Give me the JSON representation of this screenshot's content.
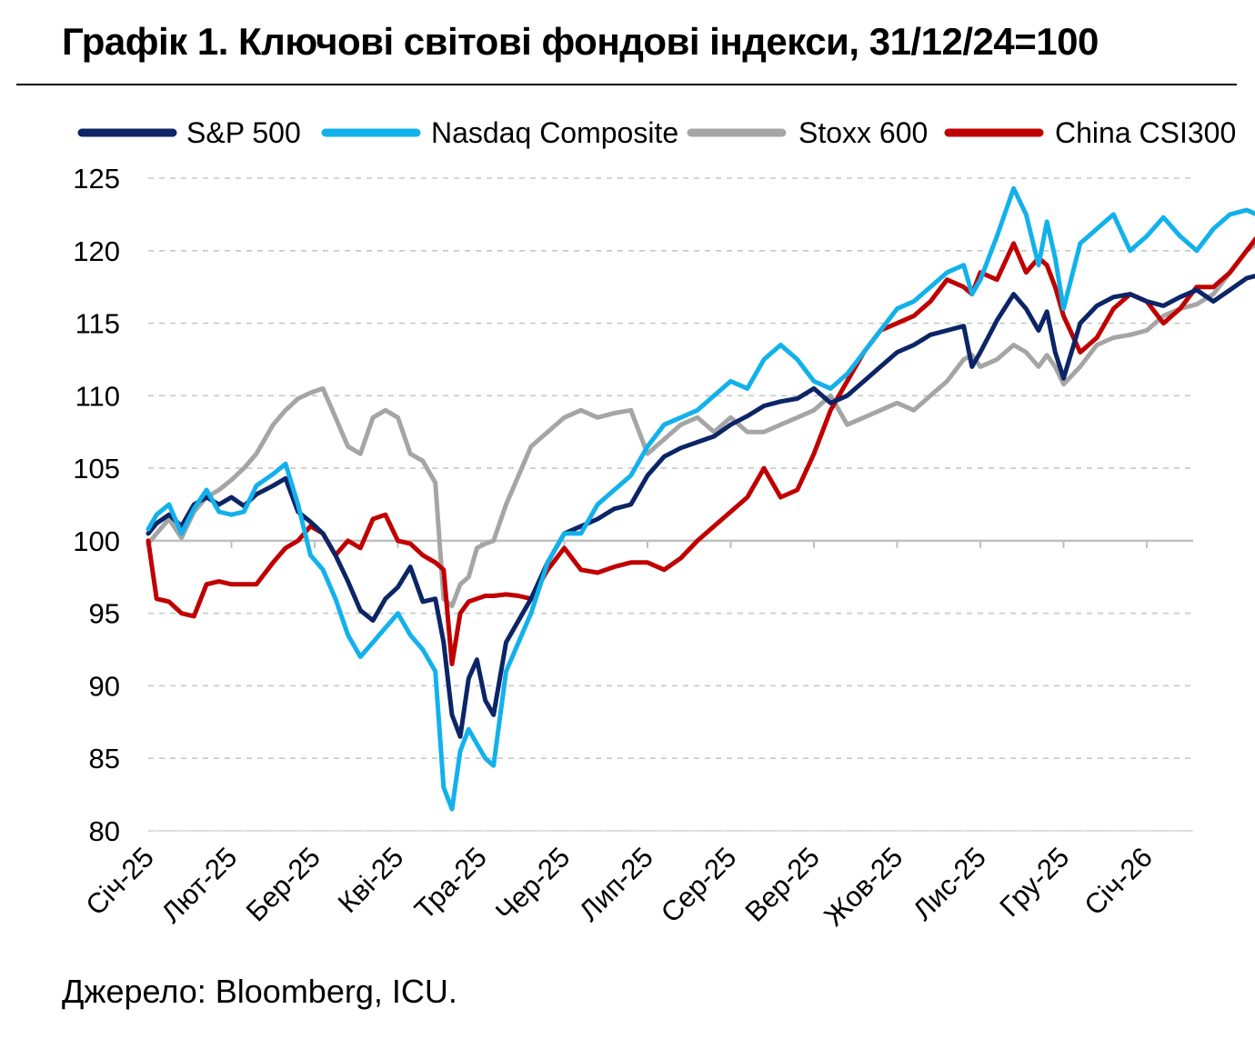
{
  "title": "Графік 1. Ключові світові фондові індекси, 31/12/24=100",
  "source": "Джерело: Bloomberg, ICU.",
  "chart_data": {
    "type": "line",
    "title": "Графік 1. Ключові світові фондові індекси, 31/12/24=100",
    "xlabel": "",
    "ylabel": "",
    "ylim": [
      80,
      125
    ],
    "yticks": [
      80,
      85,
      90,
      95,
      100,
      105,
      110,
      115,
      120,
      125
    ],
    "grid": true,
    "legend_position": "top",
    "x_ticks": [
      "Січ-25",
      "Лют-25",
      "Бер-25",
      "Кві-25",
      "Тра-25",
      "Чер-25",
      "Лип-25",
      "Сер-25",
      "Вер-25",
      "Жов-25",
      "Лис-25",
      "Гру-25",
      "Січ-26"
    ],
    "x_range": [
      0,
      13.55
    ],
    "series": [
      {
        "name": "S&P 500",
        "color": "#0b2566",
        "x": [
          0,
          0.1,
          0.25,
          0.4,
          0.55,
          0.7,
          0.85,
          1.0,
          1.15,
          1.3,
          1.5,
          1.65,
          1.8,
          1.95,
          2.1,
          2.25,
          2.4,
          2.55,
          2.7,
          2.85,
          3.0,
          3.15,
          3.3,
          3.45,
          3.55,
          3.65,
          3.75,
          3.85,
          3.95,
          4.05,
          4.15,
          4.3,
          4.45,
          4.6,
          4.8,
          5.0,
          5.2,
          5.4,
          5.6,
          5.8,
          6.0,
          6.2,
          6.4,
          6.6,
          6.8,
          7.0,
          7.2,
          7.4,
          7.6,
          7.8,
          8.0,
          8.2,
          8.4,
          8.6,
          8.8,
          9.0,
          9.2,
          9.4,
          9.6,
          9.8,
          9.9,
          10.0,
          10.2,
          10.4,
          10.55,
          10.7,
          10.8,
          10.9,
          11.0,
          11.2,
          11.4,
          11.6,
          11.8,
          12.0,
          12.2,
          12.4,
          12.6,
          12.8,
          13.0,
          13.2,
          13.4,
          13.55
        ],
        "values": [
          100.5,
          101.2,
          101.8,
          101.0,
          102.5,
          103.0,
          102.5,
          103.0,
          102.4,
          103.2,
          103.8,
          104.3,
          102.0,
          101.3,
          100.5,
          99.0,
          97.2,
          95.2,
          94.5,
          96.0,
          96.8,
          98.2,
          95.8,
          96.0,
          93.0,
          88.0,
          86.5,
          90.5,
          91.8,
          89.0,
          88.0,
          93.0,
          94.5,
          96.0,
          98.5,
          100.5,
          101.0,
          101.5,
          102.2,
          102.5,
          104.5,
          105.8,
          106.4,
          106.8,
          107.2,
          108.0,
          108.6,
          109.3,
          109.6,
          109.8,
          110.5,
          109.5,
          110.0,
          111.0,
          112.0,
          113.0,
          113.5,
          114.2,
          114.5,
          114.8,
          112.0,
          113.0,
          115.2,
          117.0,
          116.0,
          114.5,
          115.8,
          113.0,
          111.2,
          115.0,
          116.2,
          116.8,
          117.0,
          116.5,
          116.2,
          116.8,
          117.3,
          116.5,
          117.3,
          118.1,
          118.4,
          117.9
        ]
      },
      {
        "name": "Nasdaq Composite",
        "color": "#12b1ec",
        "x": [
          0,
          0.1,
          0.25,
          0.4,
          0.55,
          0.7,
          0.85,
          1.0,
          1.15,
          1.3,
          1.5,
          1.65,
          1.8,
          1.95,
          2.1,
          2.25,
          2.4,
          2.55,
          2.7,
          2.85,
          3.0,
          3.15,
          3.3,
          3.45,
          3.55,
          3.65,
          3.75,
          3.85,
          3.95,
          4.05,
          4.15,
          4.3,
          4.45,
          4.6,
          4.8,
          5.0,
          5.2,
          5.4,
          5.6,
          5.8,
          6.0,
          6.2,
          6.4,
          6.6,
          6.8,
          7.0,
          7.2,
          7.4,
          7.6,
          7.8,
          8.0,
          8.2,
          8.4,
          8.6,
          8.8,
          9.0,
          9.2,
          9.4,
          9.6,
          9.8,
          9.9,
          10.0,
          10.2,
          10.4,
          10.55,
          10.7,
          10.8,
          10.9,
          11.0,
          11.2,
          11.4,
          11.6,
          11.8,
          12.0,
          12.2,
          12.4,
          12.6,
          12.8,
          13.0,
          13.2,
          13.4,
          13.55
        ],
        "values": [
          100.8,
          101.8,
          102.5,
          100.5,
          102.2,
          103.5,
          102.0,
          101.8,
          102.0,
          103.8,
          104.6,
          105.3,
          102.5,
          99.0,
          98.0,
          96.0,
          93.5,
          92.0,
          93.0,
          94.0,
          95.0,
          93.5,
          92.5,
          91.0,
          83.0,
          81.5,
          85.5,
          87.0,
          86.0,
          85.0,
          84.5,
          91.0,
          93.0,
          95.0,
          98.5,
          100.5,
          100.5,
          102.5,
          103.5,
          104.5,
          106.5,
          108.0,
          108.5,
          109.0,
          110.0,
          111.0,
          110.5,
          112.5,
          113.5,
          112.5,
          111.0,
          110.5,
          111.5,
          113.0,
          114.5,
          116.0,
          116.5,
          117.5,
          118.5,
          119.0,
          117.0,
          118.0,
          121.0,
          124.3,
          122.5,
          119.0,
          122.0,
          119.5,
          116.0,
          120.5,
          121.5,
          122.5,
          120.0,
          121.0,
          122.3,
          121.0,
          120.0,
          121.5,
          122.5,
          122.8,
          122.3,
          121.5
        ]
      },
      {
        "name": "Stoxx 600",
        "color": "#a5a5a5",
        "x": [
          0,
          0.1,
          0.25,
          0.4,
          0.55,
          0.7,
          0.85,
          1.0,
          1.15,
          1.3,
          1.5,
          1.65,
          1.8,
          1.95,
          2.1,
          2.25,
          2.4,
          2.55,
          2.7,
          2.85,
          3.0,
          3.15,
          3.3,
          3.45,
          3.55,
          3.65,
          3.75,
          3.85,
          3.95,
          4.05,
          4.15,
          4.3,
          4.45,
          4.6,
          4.8,
          5.0,
          5.2,
          5.4,
          5.6,
          5.8,
          6.0,
          6.2,
          6.4,
          6.6,
          6.8,
          7.0,
          7.2,
          7.4,
          7.6,
          7.8,
          8.0,
          8.2,
          8.4,
          8.6,
          8.8,
          9.0,
          9.2,
          9.4,
          9.6,
          9.8,
          9.9,
          10.0,
          10.2,
          10.4,
          10.55,
          10.7,
          10.8,
          10.9,
          11.0,
          11.2,
          11.4,
          11.6,
          11.8,
          12.0,
          12.2,
          12.4,
          12.6,
          12.8,
          13.0,
          13.2,
          13.4,
          13.55
        ],
        "values": [
          99.8,
          100.5,
          101.5,
          100.2,
          102.0,
          103.0,
          103.5,
          104.2,
          105.0,
          106.0,
          108.0,
          109.0,
          109.8,
          110.2,
          110.5,
          108.5,
          106.5,
          106.0,
          108.5,
          109.0,
          108.5,
          106.0,
          105.5,
          104.0,
          96.0,
          95.5,
          97.0,
          97.5,
          99.5,
          99.8,
          100.0,
          102.5,
          104.5,
          106.5,
          107.5,
          108.5,
          109.0,
          108.5,
          108.8,
          109.0,
          106.0,
          107.0,
          108.0,
          108.5,
          107.5,
          108.5,
          107.5,
          107.5,
          108.0,
          108.5,
          109.0,
          110.0,
          108.0,
          108.5,
          109.0,
          109.5,
          109.0,
          110.0,
          111.0,
          112.5,
          112.8,
          112.0,
          112.5,
          113.5,
          113.0,
          112.0,
          112.8,
          112.0,
          110.8,
          112.0,
          113.5,
          114.0,
          114.2,
          114.5,
          115.5,
          116.0,
          116.3,
          117.0,
          118.5,
          120.0,
          120.8,
          120.8
        ]
      },
      {
        "name": "China CSI300",
        "color": "#c00000",
        "x": [
          0,
          0.1,
          0.25,
          0.4,
          0.55,
          0.7,
          0.85,
          1.0,
          1.15,
          1.3,
          1.5,
          1.65,
          1.8,
          1.95,
          2.1,
          2.25,
          2.4,
          2.55,
          2.7,
          2.85,
          3.0,
          3.15,
          3.3,
          3.45,
          3.55,
          3.65,
          3.75,
          3.85,
          3.95,
          4.05,
          4.15,
          4.3,
          4.45,
          4.6,
          4.8,
          5.0,
          5.2,
          5.4,
          5.6,
          5.8,
          6.0,
          6.2,
          6.4,
          6.6,
          6.8,
          7.0,
          7.2,
          7.4,
          7.6,
          7.8,
          8.0,
          8.2,
          8.4,
          8.6,
          8.8,
          9.0,
          9.2,
          9.4,
          9.6,
          9.8,
          9.9,
          10.0,
          10.2,
          10.4,
          10.55,
          10.7,
          10.8,
          10.9,
          11.0,
          11.2,
          11.4,
          11.6,
          11.8,
          12.0,
          12.2,
          12.4,
          12.6,
          12.8,
          13.0,
          13.2,
          13.4,
          13.55
        ],
        "values": [
          100.0,
          96.0,
          95.8,
          95.0,
          94.8,
          97.0,
          97.2,
          97.0,
          97.0,
          97.0,
          98.5,
          99.5,
          100.0,
          101.0,
          100.5,
          99.0,
          100.0,
          99.5,
          101.5,
          101.8,
          100.0,
          99.8,
          99.0,
          98.5,
          98.0,
          91.5,
          95.0,
          95.8,
          96.0,
          96.2,
          96.2,
          96.3,
          96.2,
          96.0,
          98.0,
          99.5,
          98.0,
          97.8,
          98.2,
          98.5,
          98.5,
          98.0,
          98.8,
          100.0,
          101.0,
          102.0,
          103.0,
          105.0,
          103.0,
          103.5,
          106.0,
          109.0,
          111.0,
          113.0,
          114.5,
          115.0,
          115.5,
          116.5,
          118.0,
          117.5,
          117.0,
          118.5,
          118.0,
          120.5,
          118.5,
          119.5,
          119.0,
          117.5,
          115.5,
          113.0,
          114.0,
          116.0,
          117.0,
          116.5,
          115.0,
          116.0,
          117.5,
          117.5,
          118.5,
          120.0,
          121.5,
          120.5
        ]
      }
    ]
  }
}
